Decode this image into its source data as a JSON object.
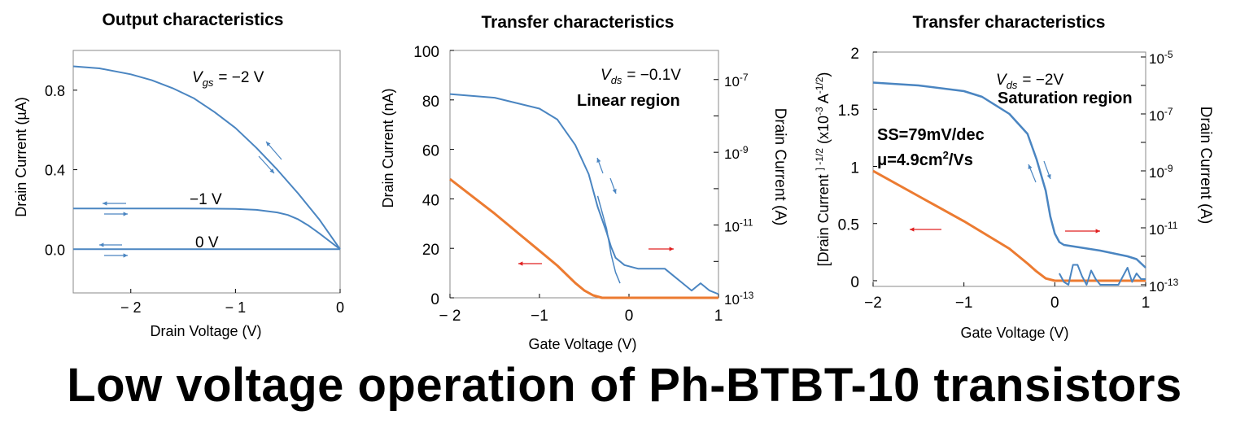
{
  "footer": {
    "title": "Low voltage operation of Ph-BTBT-10 transistors"
  },
  "colors": {
    "blue": "#4a85c1",
    "orange": "#ec7b31",
    "red": "#e02020",
    "axis": "#000000",
    "gridframe": "#888888"
  },
  "chart_data": [
    {
      "type": "line",
      "title": "Output characteristics",
      "xlabel": "Drain Voltage (V)",
      "ylabel": "Drain Current (µA)",
      "xlim": [
        -2.55,
        0
      ],
      "ylim": [
        -0.22,
        1.0
      ],
      "xticks": [
        -2,
        -1,
        0
      ],
      "xticklabels": [
        "− 2",
        "− 1",
        "0"
      ],
      "yticks": [
        0.0,
        0.4,
        0.8
      ],
      "yticklabels": [
        "0.0",
        "0.4",
        "0.8"
      ],
      "series": [
        {
          "name": "V_gs = −2 V",
          "x": [
            -2.55,
            -2.3,
            -2.0,
            -1.8,
            -1.6,
            -1.4,
            -1.2,
            -1.0,
            -0.8,
            -0.6,
            -0.4,
            -0.2,
            0
          ],
          "y": [
            0.92,
            0.91,
            0.88,
            0.85,
            0.81,
            0.76,
            0.69,
            0.61,
            0.51,
            0.4,
            0.28,
            0.15,
            0.0
          ]
        },
        {
          "name": "V_gs = −1 V",
          "x": [
            -2.55,
            -1.5,
            -1.0,
            -0.8,
            -0.6,
            -0.5,
            -0.4,
            -0.3,
            -0.2,
            -0.1,
            0
          ],
          "y": [
            0.205,
            0.205,
            0.203,
            0.198,
            0.185,
            0.172,
            0.15,
            0.118,
            0.08,
            0.04,
            0.0
          ]
        },
        {
          "name": "V_gs = 0 V",
          "x": [
            -2.55,
            0
          ],
          "y": [
            0.0,
            0.0
          ]
        }
      ],
      "annotations": [
        "V",
        "gs",
        "= −2 V",
        "−1 V",
        "0 V"
      ]
    },
    {
      "type": "line",
      "title": "Transfer characteristics",
      "xlabel": "Gate Voltage (V)",
      "ylabel": "Drain Current (nA)",
      "y2label": "Drain Current (A)",
      "xlim": [
        -2,
        1
      ],
      "ylim": [
        0,
        100
      ],
      "y2lim_log10": [
        -13,
        -6.2
      ],
      "xticks": [
        -2,
        -1,
        0,
        1
      ],
      "xticklabels": [
        "− 2",
        "−1",
        "0",
        "1"
      ],
      "yticks": [
        0,
        20,
        40,
        60,
        80,
        100
      ],
      "yticklabels": [
        "0",
        "20",
        "40",
        "60",
        "80",
        "100"
      ],
      "y2ticks_log10": [
        -13,
        -11,
        -9,
        -7
      ],
      "y2ticklabels_base": "10",
      "y2ticklabels_exp": [
        "-13",
        "-11",
        "-9",
        "-7"
      ],
      "series": [
        {
          "name": "linear",
          "axis": "left",
          "x": [
            -2,
            -1.5,
            -1.2,
            -1.0,
            -0.8,
            -0.6,
            -0.5,
            -0.4,
            -0.3,
            -0.2,
            1
          ],
          "y": [
            48,
            34,
            25,
            19,
            13,
            6,
            3,
            1,
            0,
            0,
            0
          ]
        },
        {
          "name": "log",
          "axis": "right",
          "x": [
            -2,
            -1.5,
            -1.0,
            -0.8,
            -0.6,
            -0.45,
            -0.35,
            -0.25,
            -0.2,
            -0.15,
            -0.05,
            0.1,
            0.3,
            0.4,
            0.5,
            0.6,
            0.7,
            0.8,
            0.9,
            1.0
          ],
          "y": [
            -7.4,
            -7.5,
            -7.8,
            -8.1,
            -8.8,
            -9.6,
            -10.5,
            -11.2,
            -11.6,
            -11.9,
            -12.1,
            -12.2,
            -12.2,
            -12.2,
            -12.4,
            -12.6,
            -12.8,
            -12.6,
            -12.8,
            -12.9
          ]
        },
        {
          "name": "log-reverse",
          "axis": "right",
          "x": [
            -0.35,
            -0.25,
            -0.2,
            -0.15,
            -0.1
          ],
          "y": [
            -10.2,
            -11.1,
            -11.8,
            -12.3,
            -12.6
          ]
        }
      ],
      "annotations": [
        "V",
        "ds",
        "= −0.1V",
        "Linear region"
      ]
    },
    {
      "type": "line",
      "title": "Transfer characteristics",
      "xlabel": "Gate Voltage (V)",
      "ylabel": "[Drain Current ] -1/2  (x10-3 A-1/2)",
      "ylabel_parts": [
        "[Drain Current ",
        "] -1/2",
        "  (x10",
        "-3",
        " A",
        "-1/2",
        ")"
      ],
      "y2label": "Drain Current (A)",
      "xlim": [
        -2,
        1
      ],
      "ylim": [
        -0.05,
        2.0
      ],
      "y2lim_log10": [
        -13,
        -5
      ],
      "xticks": [
        -2,
        -1,
        0,
        1
      ],
      "xticklabels": [
        "−2",
        "−1",
        "0",
        "1"
      ],
      "yticks": [
        0,
        0.5,
        1,
        1.5,
        2
      ],
      "yticklabels": [
        "0",
        "0.5",
        "1",
        "1.5",
        "2"
      ],
      "y2ticks_log10": [
        -13,
        -11,
        -9,
        -7,
        -5
      ],
      "y2ticklabels_base": "10",
      "y2ticklabels_exp": [
        "-13",
        "-11",
        "-9",
        "-7",
        "-5"
      ],
      "series": [
        {
          "name": "sqrt",
          "axis": "left",
          "x": [
            -2,
            -1.5,
            -1.0,
            -0.5,
            -0.3,
            -0.2,
            -0.1,
            0,
            1
          ],
          "y": [
            0.96,
            0.74,
            0.52,
            0.28,
            0.15,
            0.08,
            0.02,
            0,
            0
          ]
        },
        {
          "name": "log",
          "axis": "right",
          "x": [
            -2,
            -1.5,
            -1.0,
            -0.8,
            -0.5,
            -0.3,
            -0.2,
            -0.1,
            -0.05,
            0,
            0.05,
            0.1,
            0.5,
            0.8,
            0.9,
            1.0
          ],
          "y": [
            -5.9,
            -6.0,
            -6.2,
            -6.4,
            -7.0,
            -7.7,
            -8.6,
            -9.7,
            -10.6,
            -11.2,
            -11.5,
            -11.6,
            -11.8,
            -12.0,
            -12.1,
            -12.4
          ]
        },
        {
          "name": "log-noise",
          "axis": "right",
          "x": [
            0.05,
            0.1,
            0.15,
            0.2,
            0.25,
            0.3,
            0.35,
            0.4,
            0.45,
            0.5,
            0.55,
            0.6,
            0.65,
            0.7,
            0.75,
            0.8,
            0.85,
            0.9,
            0.95,
            1.0
          ],
          "y": [
            -12.6,
            -12.9,
            -13.0,
            -12.3,
            -12.3,
            -12.7,
            -13.0,
            -12.5,
            -12.8,
            -13.0,
            -13.0,
            -13.0,
            -13.0,
            -13.0,
            -12.7,
            -12.4,
            -12.9,
            -12.6,
            -12.8,
            -12.8
          ]
        }
      ],
      "annotations": [
        "V",
        "ds",
        "= −2V",
        "Saturation region",
        "SS=79mV/dec",
        "μ=4.9cm",
        "2",
        "/Vs"
      ]
    }
  ]
}
